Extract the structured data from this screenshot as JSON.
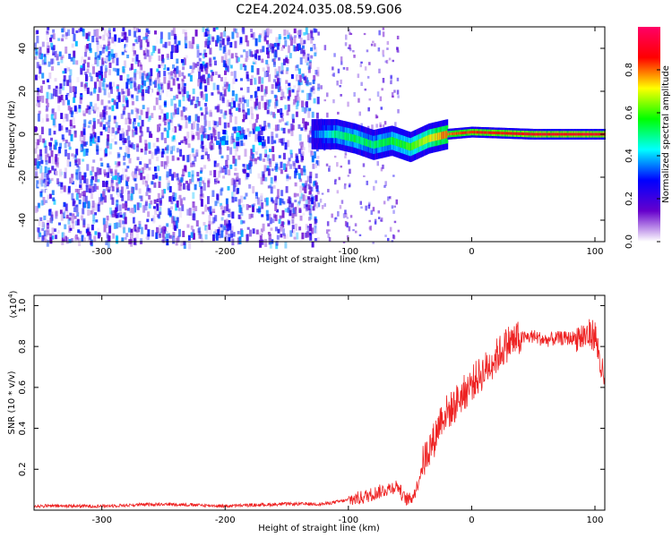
{
  "title": "C2E4.2024.035.08.59.G06",
  "chart_data": [
    {
      "type": "heatmap",
      "xlabel": "Height of straight line (km)",
      "ylabel": "Frequency (Hz)",
      "xlim": [
        -355,
        108
      ],
      "ylim": [
        -50,
        50
      ],
      "xticks": [
        -300,
        -200,
        -100,
        0,
        100
      ],
      "yticks": [
        -40,
        -20,
        0,
        20,
        40
      ],
      "colorbar": {
        "label": "Normalized spectral amplitude",
        "range": [
          0,
          1
        ],
        "ticks": [
          0.0,
          0.2,
          0.4,
          0.6,
          0.8
        ],
        "colormap": [
          "#ffffff",
          "#6600cc",
          "#0000ff",
          "#00ffff",
          "#00ff00",
          "#ffff00",
          "#ff0000",
          "#ff0066"
        ]
      },
      "features": {
        "noise_region_x": [
          -355,
          -125
        ],
        "noise_level": 0.2,
        "sparse_region_x": [
          -125,
          -60
        ],
        "signal_track": [
          {
            "x": -130,
            "y": 0,
            "amp": 0.3
          },
          {
            "x": -110,
            "y": 0,
            "amp": 0.5
          },
          {
            "x": -95,
            "y": -2,
            "amp": 0.55
          },
          {
            "x": -80,
            "y": -5,
            "amp": 0.5
          },
          {
            "x": -65,
            "y": -3,
            "amp": 0.55
          },
          {
            "x": -50,
            "y": -6,
            "amp": 0.6
          },
          {
            "x": -35,
            "y": -2,
            "amp": 0.7
          },
          {
            "x": -20,
            "y": 0,
            "amp": 0.8
          },
          {
            "x": 0,
            "y": 1,
            "amp": 0.85
          },
          {
            "x": 50,
            "y": 0,
            "amp": 0.9
          },
          {
            "x": 108,
            "y": 0,
            "amp": 0.9
          }
        ]
      }
    },
    {
      "type": "line",
      "xlabel": "Height of straight line (km)",
      "ylabel": "SNR (10 * v/v)",
      "yscale_label": "(x10",
      "yscale_exp": "4",
      "yscale_close": ")",
      "xlim": [
        -355,
        108
      ],
      "ylim": [
        0,
        1.05
      ],
      "xticks": [
        -300,
        -200,
        -100,
        0,
        100
      ],
      "yticks": [
        0.2,
        0.4,
        0.6,
        0.8,
        1.0
      ],
      "color": "#ee2222",
      "series": [
        {
          "x": [
            -355,
            -300,
            -250,
            -200,
            -150,
            -120,
            -100,
            -90,
            -80,
            -70,
            -60,
            -55,
            -50,
            -45,
            -40,
            -35,
            -30,
            -25,
            -20,
            -15,
            -10,
            -5,
            0,
            10,
            20,
            30,
            40,
            50,
            60,
            70,
            80,
            90,
            100,
            108
          ],
          "y": [
            0.02,
            0.02,
            0.03,
            0.02,
            0.03,
            0.03,
            0.05,
            0.06,
            0.08,
            0.1,
            0.12,
            0.06,
            0.05,
            0.1,
            0.22,
            0.3,
            0.35,
            0.45,
            0.48,
            0.5,
            0.55,
            0.58,
            0.62,
            0.68,
            0.75,
            0.82,
            0.84,
            0.85,
            0.83,
            0.84,
            0.84,
            0.85,
            0.86,
            0.6
          ]
        }
      ]
    }
  ]
}
